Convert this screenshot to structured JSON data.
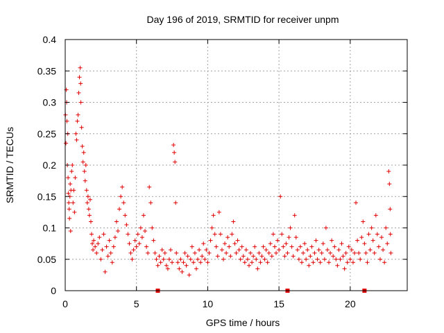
{
  "chart_data": {
    "type": "scatter",
    "title": "Day 196 of 2019, SRMTID for receiver unpm",
    "xlabel": "GPS time / hours",
    "ylabel": "SRMTID / TECUs",
    "xlim": [
      0,
      24
    ],
    "ylim": [
      0,
      0.4
    ],
    "xticks": [
      0,
      5,
      10,
      15,
      20
    ],
    "xtick_labels": [
      "0",
      "5",
      "10",
      "15",
      "20"
    ],
    "yticks": [
      0,
      0.05,
      0.1,
      0.15,
      0.2,
      0.25,
      0.3,
      0.35,
      0.4
    ],
    "ytick_labels": [
      "0",
      "0.05",
      "0.1",
      "0.15",
      "0.2",
      "0.25",
      "0.3",
      "0.35",
      "0.4"
    ],
    "grid": true,
    "marker": "plus",
    "color": "#e00000",
    "baseline_markers_x": [
      6.5,
      15.6,
      21.0
    ],
    "series": [
      {
        "name": "SRMTID",
        "note": "representative sample of the dense point cloud read off the figure (hours, TECU)",
        "points": [
          [
            0.02,
            0.28
          ],
          [
            0.05,
            0.235
          ],
          [
            0.08,
            0.32
          ],
          [
            0.1,
            0.3
          ],
          [
            0.12,
            0.27
          ],
          [
            0.15,
            0.2
          ],
          [
            0.18,
            0.25
          ],
          [
            0.2,
            0.18
          ],
          [
            0.22,
            0.155
          ],
          [
            0.25,
            0.14
          ],
          [
            0.28,
            0.13
          ],
          [
            0.3,
            0.115
          ],
          [
            0.33,
            0.15
          ],
          [
            0.35,
            0.17
          ],
          [
            0.38,
            0.095
          ],
          [
            0.4,
            0.16
          ],
          [
            0.45,
            0.19
          ],
          [
            0.5,
            0.2
          ],
          [
            0.55,
            0.14
          ],
          [
            0.6,
            0.16
          ],
          [
            0.65,
            0.125
          ],
          [
            0.7,
            0.18
          ],
          [
            0.75,
            0.25
          ],
          [
            0.8,
            0.24
          ],
          [
            0.85,
            0.27
          ],
          [
            0.9,
            0.28
          ],
          [
            0.95,
            0.315
          ],
          [
            1.0,
            0.34
          ],
          [
            1.05,
            0.355
          ],
          [
            1.08,
            0.33
          ],
          [
            1.1,
            0.3
          ],
          [
            1.15,
            0.26
          ],
          [
            1.2,
            0.23
          ],
          [
            1.25,
            0.205
          ],
          [
            1.3,
            0.22
          ],
          [
            1.35,
            0.19
          ],
          [
            1.4,
            0.175
          ],
          [
            1.45,
            0.2
          ],
          [
            1.5,
            0.16
          ],
          [
            1.55,
            0.14
          ],
          [
            1.6,
            0.15
          ],
          [
            1.65,
            0.13
          ],
          [
            1.7,
            0.12
          ],
          [
            1.75,
            0.145
          ],
          [
            1.8,
            0.11
          ],
          [
            1.85,
            0.09
          ],
          [
            1.9,
            0.075
          ],
          [
            1.95,
            0.065
          ],
          [
            2.0,
            0.08
          ],
          [
            2.1,
            0.07
          ],
          [
            2.2,
            0.06
          ],
          [
            2.3,
            0.075
          ],
          [
            2.4,
            0.085
          ],
          [
            2.5,
            0.05
          ],
          [
            2.6,
            0.065
          ],
          [
            2.7,
            0.09
          ],
          [
            2.8,
            0.03
          ],
          [
            2.9,
            0.07
          ],
          [
            3.0,
            0.055
          ],
          [
            3.1,
            0.08
          ],
          [
            3.2,
            0.06
          ],
          [
            3.3,
            0.045
          ],
          [
            3.4,
            0.07
          ],
          [
            3.5,
            0.085
          ],
          [
            3.6,
            0.11
          ],
          [
            3.7,
            0.095
          ],
          [
            3.8,
            0.13
          ],
          [
            3.9,
            0.15
          ],
          [
            4.0,
            0.165
          ],
          [
            4.1,
            0.14
          ],
          [
            4.2,
            0.12
          ],
          [
            4.3,
            0.105
          ],
          [
            4.4,
            0.09
          ],
          [
            4.5,
            0.075
          ],
          [
            4.6,
            0.06
          ],
          [
            4.7,
            0.05
          ],
          [
            4.8,
            0.065
          ],
          [
            4.9,
            0.08
          ],
          [
            5.0,
            0.07
          ],
          [
            5.1,
            0.09
          ],
          [
            5.2,
            0.075
          ],
          [
            5.3,
            0.1
          ],
          [
            5.4,
            0.085
          ],
          [
            5.5,
            0.12
          ],
          [
            5.6,
            0.095
          ],
          [
            5.7,
            0.07
          ],
          [
            5.8,
            0.06
          ],
          [
            5.9,
            0.165
          ],
          [
            6.0,
            0.14
          ],
          [
            6.1,
            0.1
          ],
          [
            6.2,
            0.08
          ],
          [
            6.3,
            0.06
          ],
          [
            6.4,
            0.05
          ],
          [
            6.5,
            0.04
          ],
          [
            6.6,
            0.055
          ],
          [
            6.7,
            0.045
          ],
          [
            6.8,
            0.065
          ],
          [
            6.9,
            0.05
          ],
          [
            7.0,
            0.06
          ],
          [
            7.1,
            0.04
          ],
          [
            7.2,
            0.035
          ],
          [
            7.3,
            0.05
          ],
          [
            7.4,
            0.065
          ],
          [
            7.5,
            0.045
          ],
          [
            7.6,
            0.232
          ],
          [
            7.65,
            0.22
          ],
          [
            7.7,
            0.205
          ],
          [
            7.75,
            0.14
          ],
          [
            7.8,
            0.06
          ],
          [
            7.9,
            0.045
          ],
          [
            8.0,
            0.035
          ],
          [
            8.1,
            0.05
          ],
          [
            8.2,
            0.03
          ],
          [
            8.3,
            0.045
          ],
          [
            8.4,
            0.06
          ],
          [
            8.5,
            0.04
          ],
          [
            8.6,
            0.055
          ],
          [
            8.7,
            0.025
          ],
          [
            8.8,
            0.05
          ],
          [
            8.9,
            0.07
          ],
          [
            9.0,
            0.045
          ],
          [
            9.1,
            0.06
          ],
          [
            9.2,
            0.035
          ],
          [
            9.3,
            0.05
          ],
          [
            9.4,
            0.065
          ],
          [
            9.5,
            0.045
          ],
          [
            9.6,
            0.055
          ],
          [
            9.7,
            0.075
          ],
          [
            9.8,
            0.05
          ],
          [
            9.9,
            0.065
          ],
          [
            10.0,
            0.045
          ],
          [
            10.1,
            0.06
          ],
          [
            10.2,
            0.08
          ],
          [
            10.3,
            0.1
          ],
          [
            10.4,
            0.12
          ],
          [
            10.5,
            0.09
          ],
          [
            10.6,
            0.07
          ],
          [
            10.7,
            0.055
          ],
          [
            10.8,
            0.125
          ],
          [
            10.9,
            0.09
          ],
          [
            11.0,
            0.065
          ],
          [
            11.1,
            0.05
          ],
          [
            11.2,
            0.075
          ],
          [
            11.3,
            0.06
          ],
          [
            11.4,
            0.085
          ],
          [
            11.5,
            0.07
          ],
          [
            11.6,
            0.055
          ],
          [
            11.7,
            0.09
          ],
          [
            11.8,
            0.11
          ],
          [
            11.9,
            0.075
          ],
          [
            12.0,
            0.06
          ],
          [
            12.1,
            0.08
          ],
          [
            12.2,
            0.065
          ],
          [
            12.3,
            0.05
          ],
          [
            12.4,
            0.07
          ],
          [
            12.5,
            0.055
          ],
          [
            12.6,
            0.045
          ],
          [
            12.7,
            0.065
          ],
          [
            12.8,
            0.05
          ],
          [
            12.9,
            0.04
          ],
          [
            13.0,
            0.06
          ],
          [
            13.1,
            0.045
          ],
          [
            13.2,
            0.055
          ],
          [
            13.3,
            0.07
          ],
          [
            13.4,
            0.05
          ],
          [
            13.5,
            0.035
          ],
          [
            13.6,
            0.06
          ],
          [
            13.7,
            0.045
          ],
          [
            13.8,
            0.055
          ],
          [
            13.9,
            0.07
          ],
          [
            14.0,
            0.05
          ],
          [
            14.1,
            0.065
          ],
          [
            14.2,
            0.045
          ],
          [
            14.3,
            0.06
          ],
          [
            14.4,
            0.075
          ],
          [
            14.5,
            0.055
          ],
          [
            14.6,
            0.09
          ],
          [
            14.7,
            0.07
          ],
          [
            14.8,
            0.06
          ],
          [
            14.9,
            0.08
          ],
          [
            15.0,
            0.065
          ],
          [
            15.1,
            0.15
          ],
          [
            15.2,
            0.09
          ],
          [
            15.3,
            0.07
          ],
          [
            15.4,
            0.055
          ],
          [
            15.5,
            0.075
          ],
          [
            15.6,
            0.06
          ],
          [
            15.7,
            0.085
          ],
          [
            15.8,
            0.1
          ],
          [
            15.9,
            0.07
          ],
          [
            16.0,
            0.055
          ],
          [
            16.1,
            0.12
          ],
          [
            16.2,
            0.085
          ],
          [
            16.3,
            0.065
          ],
          [
            16.4,
            0.05
          ],
          [
            16.5,
            0.07
          ],
          [
            16.6,
            0.045
          ],
          [
            16.7,
            0.06
          ],
          [
            16.8,
            0.075
          ],
          [
            16.9,
            0.05
          ],
          [
            17.0,
            0.065
          ],
          [
            17.1,
            0.04
          ],
          [
            17.2,
            0.055
          ],
          [
            17.3,
            0.07
          ],
          [
            17.4,
            0.045
          ],
          [
            17.5,
            0.06
          ],
          [
            17.6,
            0.08
          ],
          [
            17.7,
            0.05
          ],
          [
            17.8,
            0.065
          ],
          [
            17.9,
            0.045
          ],
          [
            18.0,
            0.06
          ],
          [
            18.1,
            0.075
          ],
          [
            18.2,
            0.05
          ],
          [
            18.3,
            0.1
          ],
          [
            18.4,
            0.065
          ],
          [
            18.5,
            0.045
          ],
          [
            18.6,
            0.06
          ],
          [
            18.7,
            0.08
          ],
          [
            18.8,
            0.055
          ],
          [
            18.9,
            0.07
          ],
          [
            19.0,
            0.05
          ],
          [
            19.1,
            0.04
          ],
          [
            19.2,
            0.065
          ],
          [
            19.3,
            0.05
          ],
          [
            19.4,
            0.075
          ],
          [
            19.5,
            0.055
          ],
          [
            19.6,
            0.035
          ],
          [
            19.7,
            0.06
          ],
          [
            19.8,
            0.045
          ],
          [
            19.9,
            0.07
          ],
          [
            20.0,
            0.05
          ],
          [
            20.1,
            0.065
          ],
          [
            20.2,
            0.045
          ],
          [
            20.3,
            0.06
          ],
          [
            20.4,
            0.14
          ],
          [
            20.5,
            0.08
          ],
          [
            20.6,
            0.06
          ],
          [
            20.7,
            0.05
          ],
          [
            20.8,
            0.085
          ],
          [
            20.9,
            0.11
          ],
          [
            21.0,
            0.075
          ],
          [
            21.1,
            0.06
          ],
          [
            21.2,
            0.045
          ],
          [
            21.3,
            0.09
          ],
          [
            21.4,
            0.065
          ],
          [
            21.5,
            0.1
          ],
          [
            21.6,
            0.08
          ],
          [
            21.7,
            0.06
          ],
          [
            21.8,
            0.12
          ],
          [
            21.9,
            0.09
          ],
          [
            22.0,
            0.07
          ],
          [
            22.1,
            0.05
          ],
          [
            22.2,
            0.085
          ],
          [
            22.3,
            0.065
          ],
          [
            22.4,
            0.045
          ],
          [
            22.5,
            0.1
          ],
          [
            22.6,
            0.075
          ],
          [
            22.7,
            0.19
          ],
          [
            22.75,
            0.17
          ],
          [
            22.8,
            0.13
          ],
          [
            22.82,
            0.09
          ],
          [
            22.85,
            0.06
          ]
        ]
      }
    ]
  }
}
